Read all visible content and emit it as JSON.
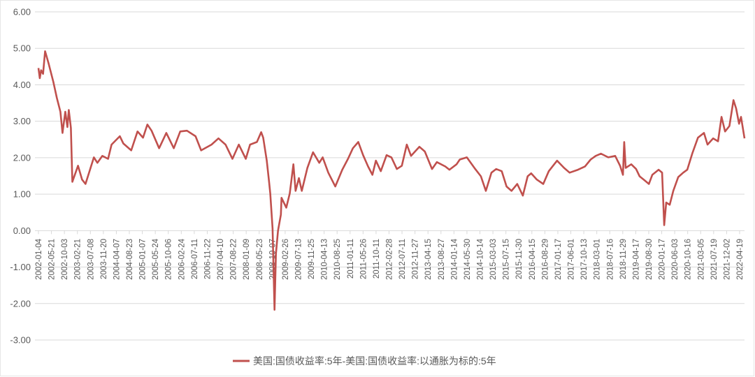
{
  "chart_data": {
    "type": "line",
    "title": "",
    "xlabel": "",
    "ylabel": "",
    "ylim": [
      -3,
      6
    ],
    "yticks": [
      "6.00",
      "5.00",
      "4.00",
      "3.00",
      "2.00",
      "1.00",
      "0.00",
      "-1.00",
      "-2.00",
      "-3.00"
    ],
    "ytick_values": [
      6,
      5,
      4,
      3,
      2,
      1,
      0,
      -1,
      -2,
      -3
    ],
    "grid": true,
    "legend_position": "bottom",
    "line_color": "#C0504D",
    "xticks": [
      "2002-01-04",
      "2002-05-21",
      "2002-10-03",
      "2003-02-21",
      "2003-07-08",
      "2003-11-20",
      "2004-04-07",
      "2004-08-23",
      "2005-01-07",
      "2005-05-24",
      "2005-10-06",
      "2006-02-24",
      "2006-07-11",
      "2006-11-22",
      "2007-04-10",
      "2007-08-22",
      "2008-01-09",
      "2008-05-23",
      "2008-10-07",
      "2009-02-26",
      "2009-07-13",
      "2009-11-25",
      "2010-04-13",
      "2010-08-25",
      "2011-01-11",
      "2011-05-26",
      "2011-10-11",
      "2012-02-28",
      "2012-07-11",
      "2012-11-27",
      "2013-04-15",
      "2013-08-27",
      "2014-01-14",
      "2014-05-30",
      "2014-10-14",
      "2015-03-03",
      "2015-07-15",
      "2015-11-30",
      "2016-04-15",
      "2016-08-29",
      "2017-01-17",
      "2017-06-01",
      "2017-10-13",
      "2018-03-01",
      "2018-07-16",
      "2018-11-29",
      "2019-04-17",
      "2019-08-30",
      "2020-01-17",
      "2020-06-03",
      "2020-10-16",
      "2021-03-05",
      "2021-07-19",
      "2021-12-02",
      "2022-04-19"
    ],
    "series": [
      {
        "name": "美国:国债收益率:5年-美国:国债收益率:以通胀为标的:5年",
        "points": [
          [
            "2002-01-04",
            4.46
          ],
          [
            "2002-01-18",
            4.18
          ],
          [
            "2002-02-01",
            4.4
          ],
          [
            "2002-02-22",
            4.3
          ],
          [
            "2002-03-15",
            4.92
          ],
          [
            "2002-04-20",
            4.6
          ],
          [
            "2002-06-10",
            4.08
          ],
          [
            "2002-07-17",
            3.64
          ],
          [
            "2002-08-24",
            3.26
          ],
          [
            "2002-09-15",
            2.68
          ],
          [
            "2002-10-15",
            3.26
          ],
          [
            "2002-11-06",
            2.84
          ],
          [
            "2002-11-21",
            3.31
          ],
          [
            "2002-12-13",
            2.82
          ],
          [
            "2002-12-28",
            1.34
          ],
          [
            "2003-02-26",
            1.78
          ],
          [
            "2003-04-10",
            1.4
          ],
          [
            "2003-05-16",
            1.28
          ],
          [
            "2003-08-13",
            2.01
          ],
          [
            "2003-09-19",
            1.86
          ],
          [
            "2003-11-10",
            2.05
          ],
          [
            "2004-01-10",
            1.97
          ],
          [
            "2004-02-16",
            2.36
          ],
          [
            "2004-05-13",
            2.59
          ],
          [
            "2004-06-19",
            2.39
          ],
          [
            "2004-09-10",
            2.2
          ],
          [
            "2004-11-16",
            2.72
          ],
          [
            "2005-01-13",
            2.55
          ],
          [
            "2005-02-28",
            2.91
          ],
          [
            "2005-04-13",
            2.74
          ],
          [
            "2005-07-02",
            2.26
          ],
          [
            "2005-09-16",
            2.68
          ],
          [
            "2005-12-04",
            2.26
          ],
          [
            "2006-02-10",
            2.72
          ],
          [
            "2006-04-22",
            2.74
          ],
          [
            "2006-07-22",
            2.59
          ],
          [
            "2006-09-19",
            2.2
          ],
          [
            "2007-01-07",
            2.36
          ],
          [
            "2007-03-21",
            2.53
          ],
          [
            "2007-06-04",
            2.36
          ],
          [
            "2007-08-16",
            1.97
          ],
          [
            "2007-10-22",
            2.36
          ],
          [
            "2008-01-04",
            1.97
          ],
          [
            "2008-02-18",
            2.36
          ],
          [
            "2008-05-01",
            2.43
          ],
          [
            "2008-06-15",
            2.7
          ],
          [
            "2008-07-06",
            2.55
          ],
          [
            "2008-08-13",
            1.92
          ],
          [
            "2008-09-06",
            1.34
          ],
          [
            "2008-09-19",
            1.02
          ],
          [
            "2008-10-13",
            0.06
          ],
          [
            "2008-11-03",
            -2.17
          ],
          [
            "2008-11-18",
            -0.63
          ],
          [
            "2008-12-10",
            0.0
          ],
          [
            "2009-01-09",
            0.44
          ],
          [
            "2009-01-16",
            0.9
          ],
          [
            "2009-03-07",
            0.63
          ],
          [
            "2009-04-13",
            1.02
          ],
          [
            "2009-05-21",
            1.82
          ],
          [
            "2009-06-13",
            1.09
          ],
          [
            "2009-07-19",
            1.44
          ],
          [
            "2009-08-18",
            1.09
          ],
          [
            "2009-10-16",
            1.72
          ],
          [
            "2009-12-15",
            2.15
          ],
          [
            "2010-02-19",
            1.86
          ],
          [
            "2010-03-27",
            2.01
          ],
          [
            "2010-05-25",
            1.59
          ],
          [
            "2010-08-07",
            1.21
          ],
          [
            "2010-10-20",
            1.67
          ],
          [
            "2010-12-19",
            1.97
          ],
          [
            "2011-02-09",
            2.26
          ],
          [
            "2011-04-07",
            2.43
          ],
          [
            "2011-05-28",
            2.07
          ],
          [
            "2011-07-19",
            1.76
          ],
          [
            "2011-09-03",
            1.53
          ],
          [
            "2011-10-10",
            1.92
          ],
          [
            "2011-12-01",
            1.63
          ],
          [
            "2012-01-31",
            2.07
          ],
          [
            "2012-03-22",
            2.01
          ],
          [
            "2012-05-19",
            1.69
          ],
          [
            "2012-07-10",
            1.78
          ],
          [
            "2012-09-01",
            2.36
          ],
          [
            "2012-10-16",
            2.05
          ],
          [
            "2013-01-12",
            2.3
          ],
          [
            "2013-03-10",
            2.17
          ],
          [
            "2013-05-25",
            1.69
          ],
          [
            "2013-07-15",
            1.88
          ],
          [
            "2013-10-12",
            1.76
          ],
          [
            "2013-11-25",
            1.67
          ],
          [
            "2014-02-09",
            1.82
          ],
          [
            "2014-03-15",
            1.95
          ],
          [
            "2014-05-28",
            2.01
          ],
          [
            "2014-08-25",
            1.69
          ],
          [
            "2014-10-24",
            1.49
          ],
          [
            "2014-12-15",
            1.09
          ],
          [
            "2015-02-12",
            1.59
          ],
          [
            "2015-04-03",
            1.69
          ],
          [
            "2015-06-01",
            1.63
          ],
          [
            "2015-07-22",
            1.21
          ],
          [
            "2015-09-12",
            1.09
          ],
          [
            "2015-11-12",
            1.28
          ],
          [
            "2016-01-10",
            0.96
          ],
          [
            "2016-03-01",
            1.49
          ],
          [
            "2016-04-07",
            1.57
          ],
          [
            "2016-06-06",
            1.4
          ],
          [
            "2016-08-13",
            1.28
          ],
          [
            "2016-10-10",
            1.63
          ],
          [
            "2017-01-06",
            1.92
          ],
          [
            "2017-03-21",
            1.72
          ],
          [
            "2017-05-18",
            1.59
          ],
          [
            "2017-08-15",
            1.67
          ],
          [
            "2017-10-28",
            1.76
          ],
          [
            "2017-12-27",
            1.95
          ],
          [
            "2018-02-18",
            2.05
          ],
          [
            "2018-04-15",
            2.11
          ],
          [
            "2018-07-01",
            2.01
          ],
          [
            "2018-09-12",
            2.05
          ],
          [
            "2018-11-03",
            1.78
          ],
          [
            "2018-12-03",
            1.53
          ],
          [
            "2018-12-16",
            2.43
          ],
          [
            "2019-01-01",
            1.72
          ],
          [
            "2019-03-01",
            1.82
          ],
          [
            "2019-04-21",
            1.69
          ],
          [
            "2019-05-28",
            1.49
          ],
          [
            "2019-07-19",
            1.38
          ],
          [
            "2019-09-03",
            1.28
          ],
          [
            "2019-10-09",
            1.53
          ],
          [
            "2019-12-15",
            1.67
          ],
          [
            "2020-01-21",
            1.59
          ],
          [
            "2020-02-12",
            0.15
          ],
          [
            "2020-03-04",
            0.77
          ],
          [
            "2020-04-10",
            0.71
          ],
          [
            "2020-05-18",
            1.09
          ],
          [
            "2020-07-09",
            1.47
          ],
          [
            "2020-08-31",
            1.59
          ],
          [
            "2020-10-13",
            1.67
          ],
          [
            "2020-12-04",
            2.11
          ],
          [
            "2021-02-03",
            2.55
          ],
          [
            "2021-04-07",
            2.68
          ],
          [
            "2021-05-15",
            2.36
          ],
          [
            "2021-07-13",
            2.53
          ],
          [
            "2021-09-03",
            2.45
          ],
          [
            "2021-10-10",
            3.12
          ],
          [
            "2021-11-16",
            2.72
          ],
          [
            "2022-01-01",
            2.87
          ],
          [
            "2022-02-13",
            3.58
          ],
          [
            "2022-03-13",
            3.35
          ],
          [
            "2022-04-13",
            2.93
          ],
          [
            "2022-05-04",
            3.12
          ],
          [
            "2022-06-10",
            2.53
          ]
        ]
      }
    ]
  }
}
